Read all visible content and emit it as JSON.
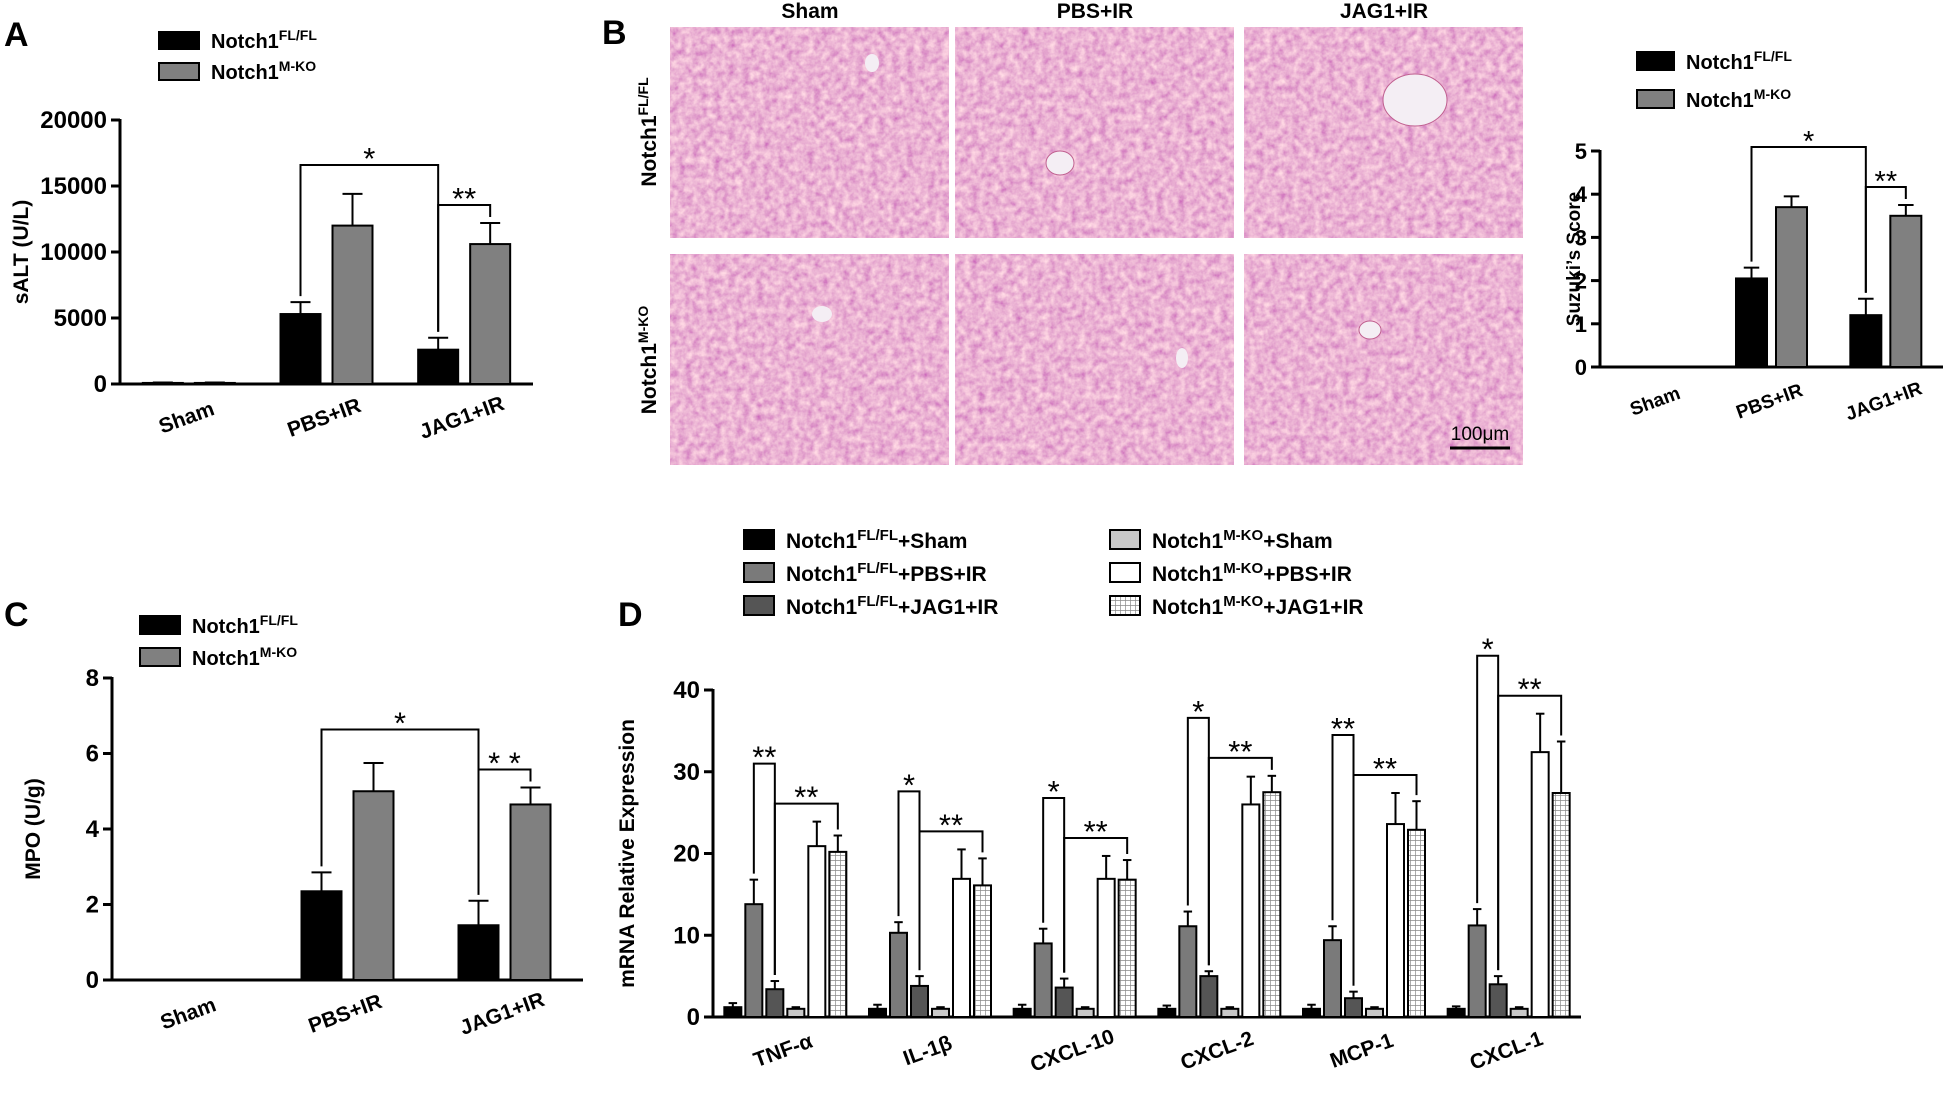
{
  "chart_data": [
    {
      "type": "bar",
      "panel": "A",
      "y_label": "sALT (U/L)",
      "categories": [
        "Sham",
        "PBS+IR",
        "JAG1+IR"
      ],
      "series": [
        {
          "name": "Notch1",
          "name_sup": "FL/FL",
          "color": "#000000",
          "values": [
            80,
            5300,
            2600
          ],
          "errors": [
            30,
            900,
            900
          ]
        },
        {
          "name": "Notch1",
          "name_sup": "M-KO",
          "color": "#808080",
          "values": [
            80,
            12000,
            10600
          ],
          "errors": [
            30,
            2400,
            1600
          ]
        }
      ],
      "ylim": [
        0,
        20000
      ],
      "yticks": [
        0,
        5000,
        10000,
        15000,
        20000
      ],
      "significance": [
        {
          "label": "**",
          "a": [
            0,
            2
          ],
          "b": [
            1,
            2
          ]
        },
        {
          "label": "*",
          "a": [
            0,
            1
          ],
          "b": [
            0,
            2
          ]
        }
      ]
    },
    {
      "type": "bar",
      "y_label": "Suzuki’s Score",
      "categories": [
        "Sham",
        "PBS+IR",
        "JAG1+IR"
      ],
      "series": [
        {
          "name": "Notch1",
          "name_sup": "FL/FL",
          "color": "#000000",
          "values": [
            0,
            2.05,
            1.2
          ],
          "errors": [
            0,
            0.25,
            0.38
          ]
        },
        {
          "name": "Notch1",
          "name_sup": "M-KO",
          "color": "#808080",
          "values": [
            0,
            3.7,
            3.5
          ],
          "errors": [
            0,
            0.25,
            0.25
          ]
        }
      ],
      "ylim": [
        0,
        5
      ],
      "yticks": [
        0,
        1,
        2,
        3,
        4,
        5
      ],
      "significance": [
        {
          "label": "**",
          "a": [
            0,
            2
          ],
          "b": [
            1,
            2
          ]
        },
        {
          "label": "*",
          "a": [
            0,
            1
          ],
          "b": [
            0,
            2
          ]
        }
      ]
    },
    {
      "type": "bar",
      "panel": "C",
      "y_label": "MPO (U/g)",
      "categories": [
        "Sham",
        "PBS+IR",
        "JAG1+IR"
      ],
      "series": [
        {
          "name": "Notch1",
          "name_sup": "FL/FL",
          "color": "#000000",
          "values": [
            0,
            2.35,
            1.45
          ],
          "errors": [
            0,
            0.5,
            0.65
          ]
        },
        {
          "name": "Notch1",
          "name_sup": "M-KO",
          "color": "#808080",
          "values": [
            0,
            5.0,
            4.65
          ],
          "errors": [
            0,
            0.75,
            0.45
          ]
        }
      ],
      "ylim": [
        0,
        8
      ],
      "yticks": [
        0,
        2,
        4,
        6,
        8
      ],
      "significance": [
        {
          "label": "* *",
          "a": [
            0,
            2
          ],
          "b": [
            1,
            2
          ]
        },
        {
          "label": "*",
          "a": [
            0,
            1
          ],
          "b": [
            0,
            2
          ]
        }
      ]
    },
    {
      "type": "bar",
      "panel": "D",
      "y_label": "mRNA Relative Expression",
      "categories": [
        "TNF-α",
        "IL-1β",
        "CXCL-10",
        "CXCL-2",
        "MCP-1",
        "CXCL-1"
      ],
      "series": [
        {
          "name": "Notch1",
          "name_sup": "FL/FL",
          "name_suffix": "+Sham",
          "color": "#000000",
          "values": [
            1.2,
            1.0,
            1.0,
            1.0,
            1.0,
            1.0
          ],
          "errors": [
            0.5,
            0.5,
            0.5,
            0.4,
            0.5,
            0.3
          ]
        },
        {
          "name": "Notch1",
          "name_sup": "FL/FL",
          "name_suffix": "+PBS+IR",
          "color": "#7a7a7a",
          "values": [
            13.8,
            10.3,
            9.0,
            11.1,
            9.4,
            11.2
          ],
          "errors": [
            3.0,
            1.3,
            1.8,
            1.8,
            1.7,
            2.0
          ]
        },
        {
          "name": "Notch1",
          "name_sup": "FL/FL",
          "name_suffix": "+JAG1+IR",
          "color": "#555555",
          "values": [
            3.4,
            3.8,
            3.6,
            5.0,
            2.3,
            4.0
          ],
          "errors": [
            1.0,
            1.2,
            1.1,
            0.6,
            0.8,
            1.0
          ]
        },
        {
          "name": "Notch1",
          "name_sup": "M-KO",
          "name_suffix": "+Sham",
          "color": "#c8c8c8",
          "values": [
            1.0,
            1.0,
            1.0,
            1.0,
            1.0,
            1.0
          ],
          "errors": [
            0.2,
            0.2,
            0.2,
            0.2,
            0.2,
            0.2
          ]
        },
        {
          "name": "Notch1",
          "name_sup": "M-KO",
          "name_suffix": "+PBS+IR",
          "color": "#ffffff",
          "values": [
            20.9,
            16.9,
            16.9,
            26.0,
            23.6,
            32.4
          ],
          "errors": [
            3.0,
            3.6,
            2.8,
            3.4,
            3.8,
            4.7
          ]
        },
        {
          "name": "Notch1",
          "name_sup": "M-KO",
          "name_suffix": "+JAG1+IR",
          "color": "#ffffff",
          "pattern": "grid",
          "values": [
            20.2,
            16.1,
            16.8,
            27.5,
            22.9,
            27.4
          ],
          "errors": [
            2.0,
            3.3,
            2.4,
            2.0,
            3.5,
            6.3
          ]
        }
      ],
      "ylim": [
        0,
        40
      ],
      "yticks": [
        0,
        10,
        20,
        30,
        40
      ],
      "significance": [
        {
          "label": "**",
          "a": [
            2,
            0
          ],
          "b": [
            5,
            0
          ]
        },
        {
          "label": "**",
          "a": [
            1,
            0
          ],
          "b": [
            2,
            0
          ]
        },
        {
          "label": "**",
          "a": [
            2,
            1
          ],
          "b": [
            5,
            1
          ]
        },
        {
          "label": "*",
          "a": [
            1,
            1
          ],
          "b": [
            2,
            1
          ]
        },
        {
          "label": "**",
          "a": [
            2,
            2
          ],
          "b": [
            5,
            2
          ]
        },
        {
          "label": "*",
          "a": [
            1,
            2
          ],
          "b": [
            2,
            2
          ]
        },
        {
          "label": "**",
          "a": [
            2,
            3
          ],
          "b": [
            5,
            3
          ]
        },
        {
          "label": "*",
          "a": [
            1,
            3
          ],
          "b": [
            2,
            3
          ]
        },
        {
          "label": "**",
          "a": [
            2,
            4
          ],
          "b": [
            5,
            4
          ]
        },
        {
          "label": "**",
          "a": [
            1,
            4
          ],
          "b": [
            2,
            4
          ]
        },
        {
          "label": "**",
          "a": [
            2,
            5
          ],
          "b": [
            5,
            5
          ]
        },
        {
          "label": "*",
          "a": [
            1,
            5
          ],
          "b": [
            2,
            5
          ]
        }
      ]
    }
  ],
  "panel_b": {
    "label": "B",
    "columns": [
      "Sham",
      "PBS+IR",
      "JAG1+IR"
    ],
    "rows": [
      {
        "name": "Notch1",
        "sup": "FL/FL"
      },
      {
        "name": "Notch1",
        "sup": "M-KO"
      }
    ],
    "scale_bar": "100μm"
  }
}
